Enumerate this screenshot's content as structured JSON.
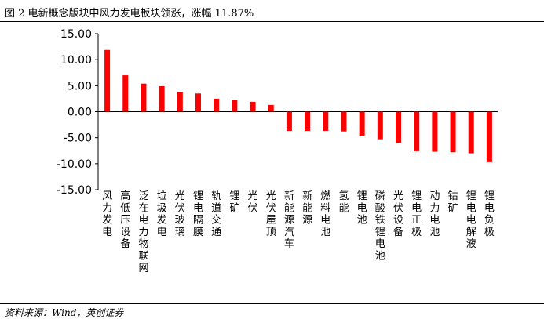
{
  "figure": {
    "title": "图 2 电新概念版块中风力发电板块领涨，涨幅 11.87%",
    "source": "资料来源：Wind，英创证券"
  },
  "chart_data": {
    "type": "bar",
    "title": "",
    "xlabel": "",
    "ylabel": "",
    "ylim": [
      -15,
      15
    ],
    "yticks": [
      "15.00",
      "10.00",
      "5.00",
      "0.00",
      "-5.00",
      "-10.00",
      "-15.00"
    ],
    "bar_color": "#FF0000",
    "grid": false,
    "categories": [
      "风力发电",
      "高低压设备",
      "泛在电力物联网",
      "垃圾发电",
      "光伏玻璃",
      "锂电隔膜",
      "轨道交通",
      "锂矿",
      "光伏",
      "光伏屋顶",
      "新能源汽车",
      "新能源",
      "燃料电池",
      "氢能",
      "锂电池",
      "磷酸铁锂电池",
      "光伏设备",
      "锂电正极",
      "动力电池",
      "钴矿",
      "锂电电解液",
      "锂电负极"
    ],
    "values": [
      11.87,
      7.0,
      5.4,
      4.9,
      3.8,
      3.5,
      2.5,
      2.3,
      1.9,
      1.3,
      -3.7,
      -3.7,
      -3.7,
      -3.8,
      -4.6,
      -5.3,
      -6.0,
      -7.6,
      -7.7,
      -7.8,
      -8.0,
      -9.7
    ]
  }
}
